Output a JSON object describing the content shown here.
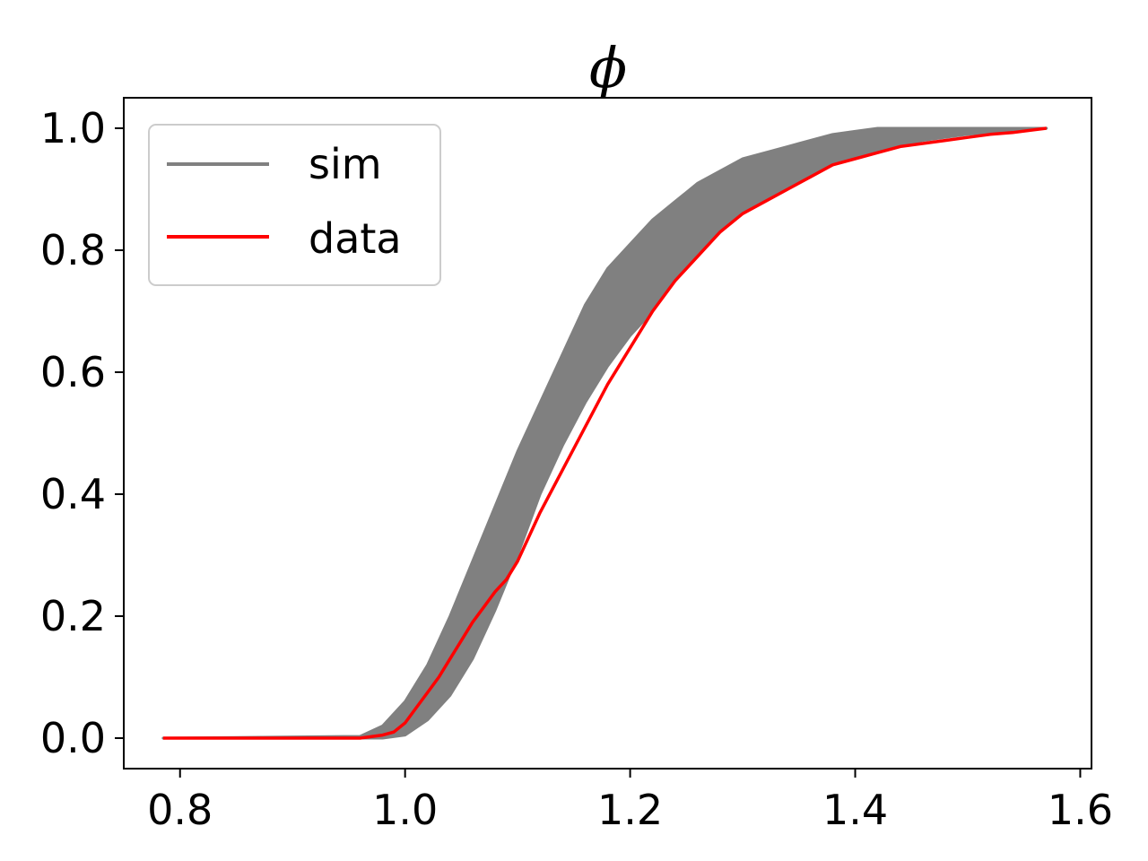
{
  "chart_data": {
    "type": "line",
    "title": "ϕ",
    "xlabel": "",
    "ylabel": "",
    "xlim": [
      0.75,
      1.61
    ],
    "ylim": [
      -0.05,
      1.05
    ],
    "xticks": [
      0.8,
      1.0,
      1.2,
      1.4,
      1.6
    ],
    "xtick_labels": [
      "0.8",
      "1.0",
      "1.2",
      "1.4",
      "1.6"
    ],
    "yticks": [
      0.0,
      0.2,
      0.4,
      0.6,
      0.8,
      1.0
    ],
    "ytick_labels": [
      "0.0",
      "0.2",
      "0.4",
      "0.6",
      "0.8",
      "1.0"
    ],
    "grid": false,
    "legend_placement": "upper-left",
    "colors": {
      "sim": "#808080",
      "data": "#ff0000"
    },
    "sim_band": {
      "name": "sim",
      "x": [
        0.785,
        0.96,
        0.98,
        1.0,
        1.02,
        1.04,
        1.06,
        1.08,
        1.1,
        1.12,
        1.14,
        1.16,
        1.18,
        1.2,
        1.22,
        1.24,
        1.26,
        1.28,
        1.3,
        1.32,
        1.34,
        1.36,
        1.38,
        1.4,
        1.42,
        1.44,
        1.46,
        1.48,
        1.5,
        1.52,
        1.54,
        1.57
      ],
      "lower": [
        0.0,
        0.0,
        0.0,
        0.005,
        0.03,
        0.07,
        0.13,
        0.21,
        0.3,
        0.4,
        0.48,
        0.55,
        0.61,
        0.66,
        0.7,
        0.75,
        0.79,
        0.83,
        0.86,
        0.88,
        0.9,
        0.92,
        0.94,
        0.95,
        0.96,
        0.97,
        0.98,
        0.985,
        0.99,
        0.993,
        0.996,
        1.0
      ],
      "upper": [
        0.0,
        0.003,
        0.02,
        0.06,
        0.12,
        0.2,
        0.29,
        0.38,
        0.47,
        0.55,
        0.63,
        0.71,
        0.77,
        0.81,
        0.85,
        0.88,
        0.91,
        0.93,
        0.95,
        0.96,
        0.97,
        0.98,
        0.99,
        0.995,
        1.0,
        1.0,
        1.0,
        1.0,
        1.0,
        1.0,
        1.0,
        1.0
      ]
    },
    "series": [
      {
        "name": "data",
        "x": [
          0.785,
          0.96,
          0.98,
          0.99,
          1.0,
          1.01,
          1.02,
          1.03,
          1.04,
          1.05,
          1.06,
          1.07,
          1.08,
          1.09,
          1.1,
          1.12,
          1.14,
          1.16,
          1.18,
          1.2,
          1.22,
          1.24,
          1.26,
          1.28,
          1.3,
          1.32,
          1.34,
          1.36,
          1.38,
          1.4,
          1.42,
          1.44,
          1.46,
          1.48,
          1.5,
          1.52,
          1.54,
          1.57
        ],
        "y": [
          0.0,
          0.0,
          0.005,
          0.01,
          0.025,
          0.05,
          0.075,
          0.1,
          0.13,
          0.16,
          0.19,
          0.215,
          0.24,
          0.26,
          0.29,
          0.37,
          0.44,
          0.51,
          0.58,
          0.64,
          0.7,
          0.75,
          0.79,
          0.83,
          0.86,
          0.88,
          0.9,
          0.92,
          0.94,
          0.95,
          0.96,
          0.97,
          0.975,
          0.98,
          0.985,
          0.99,
          0.993,
          1.0
        ]
      }
    ]
  }
}
